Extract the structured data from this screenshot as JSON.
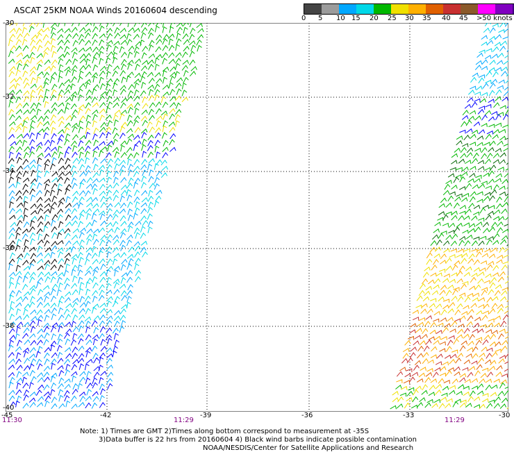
{
  "title": "ASCAT 25KM NOAA Winds 20160604 descending",
  "legend": {
    "colors": [
      "#444444",
      "#9c9c9c",
      "#00a8ff",
      "#00d8e8",
      "#00b800",
      "#f0e000",
      "#ffb000",
      "#e06000",
      "#c83030",
      "#8b5a2b",
      "#ff00ff",
      "#8000c0",
      "#400080"
    ],
    "labels": [
      "0",
      "5",
      "10",
      "15",
      "20",
      "25",
      "30",
      "35",
      "40",
      "45",
      ">50 knots"
    ]
  },
  "axes": {
    "lat_labels": [
      "-30",
      "-32",
      "-34",
      "-36",
      "-38",
      "-40"
    ],
    "lon_labels": [
      "-45",
      "-42",
      "-39",
      "-36",
      "-33",
      "-30"
    ]
  },
  "swath_times": [
    "11:30",
    "11:29",
    "11:29"
  ],
  "notes": [
    "Note: 1) Times are GMT 2)Times along bottom correspond to measurement at -35S",
    "3)Data buffer is 22 hrs from 20160604 4) Black wind barbs indicate possible contamination",
    "NOAA/NESDIS/Center for Satellite Applications and Research"
  ]
}
